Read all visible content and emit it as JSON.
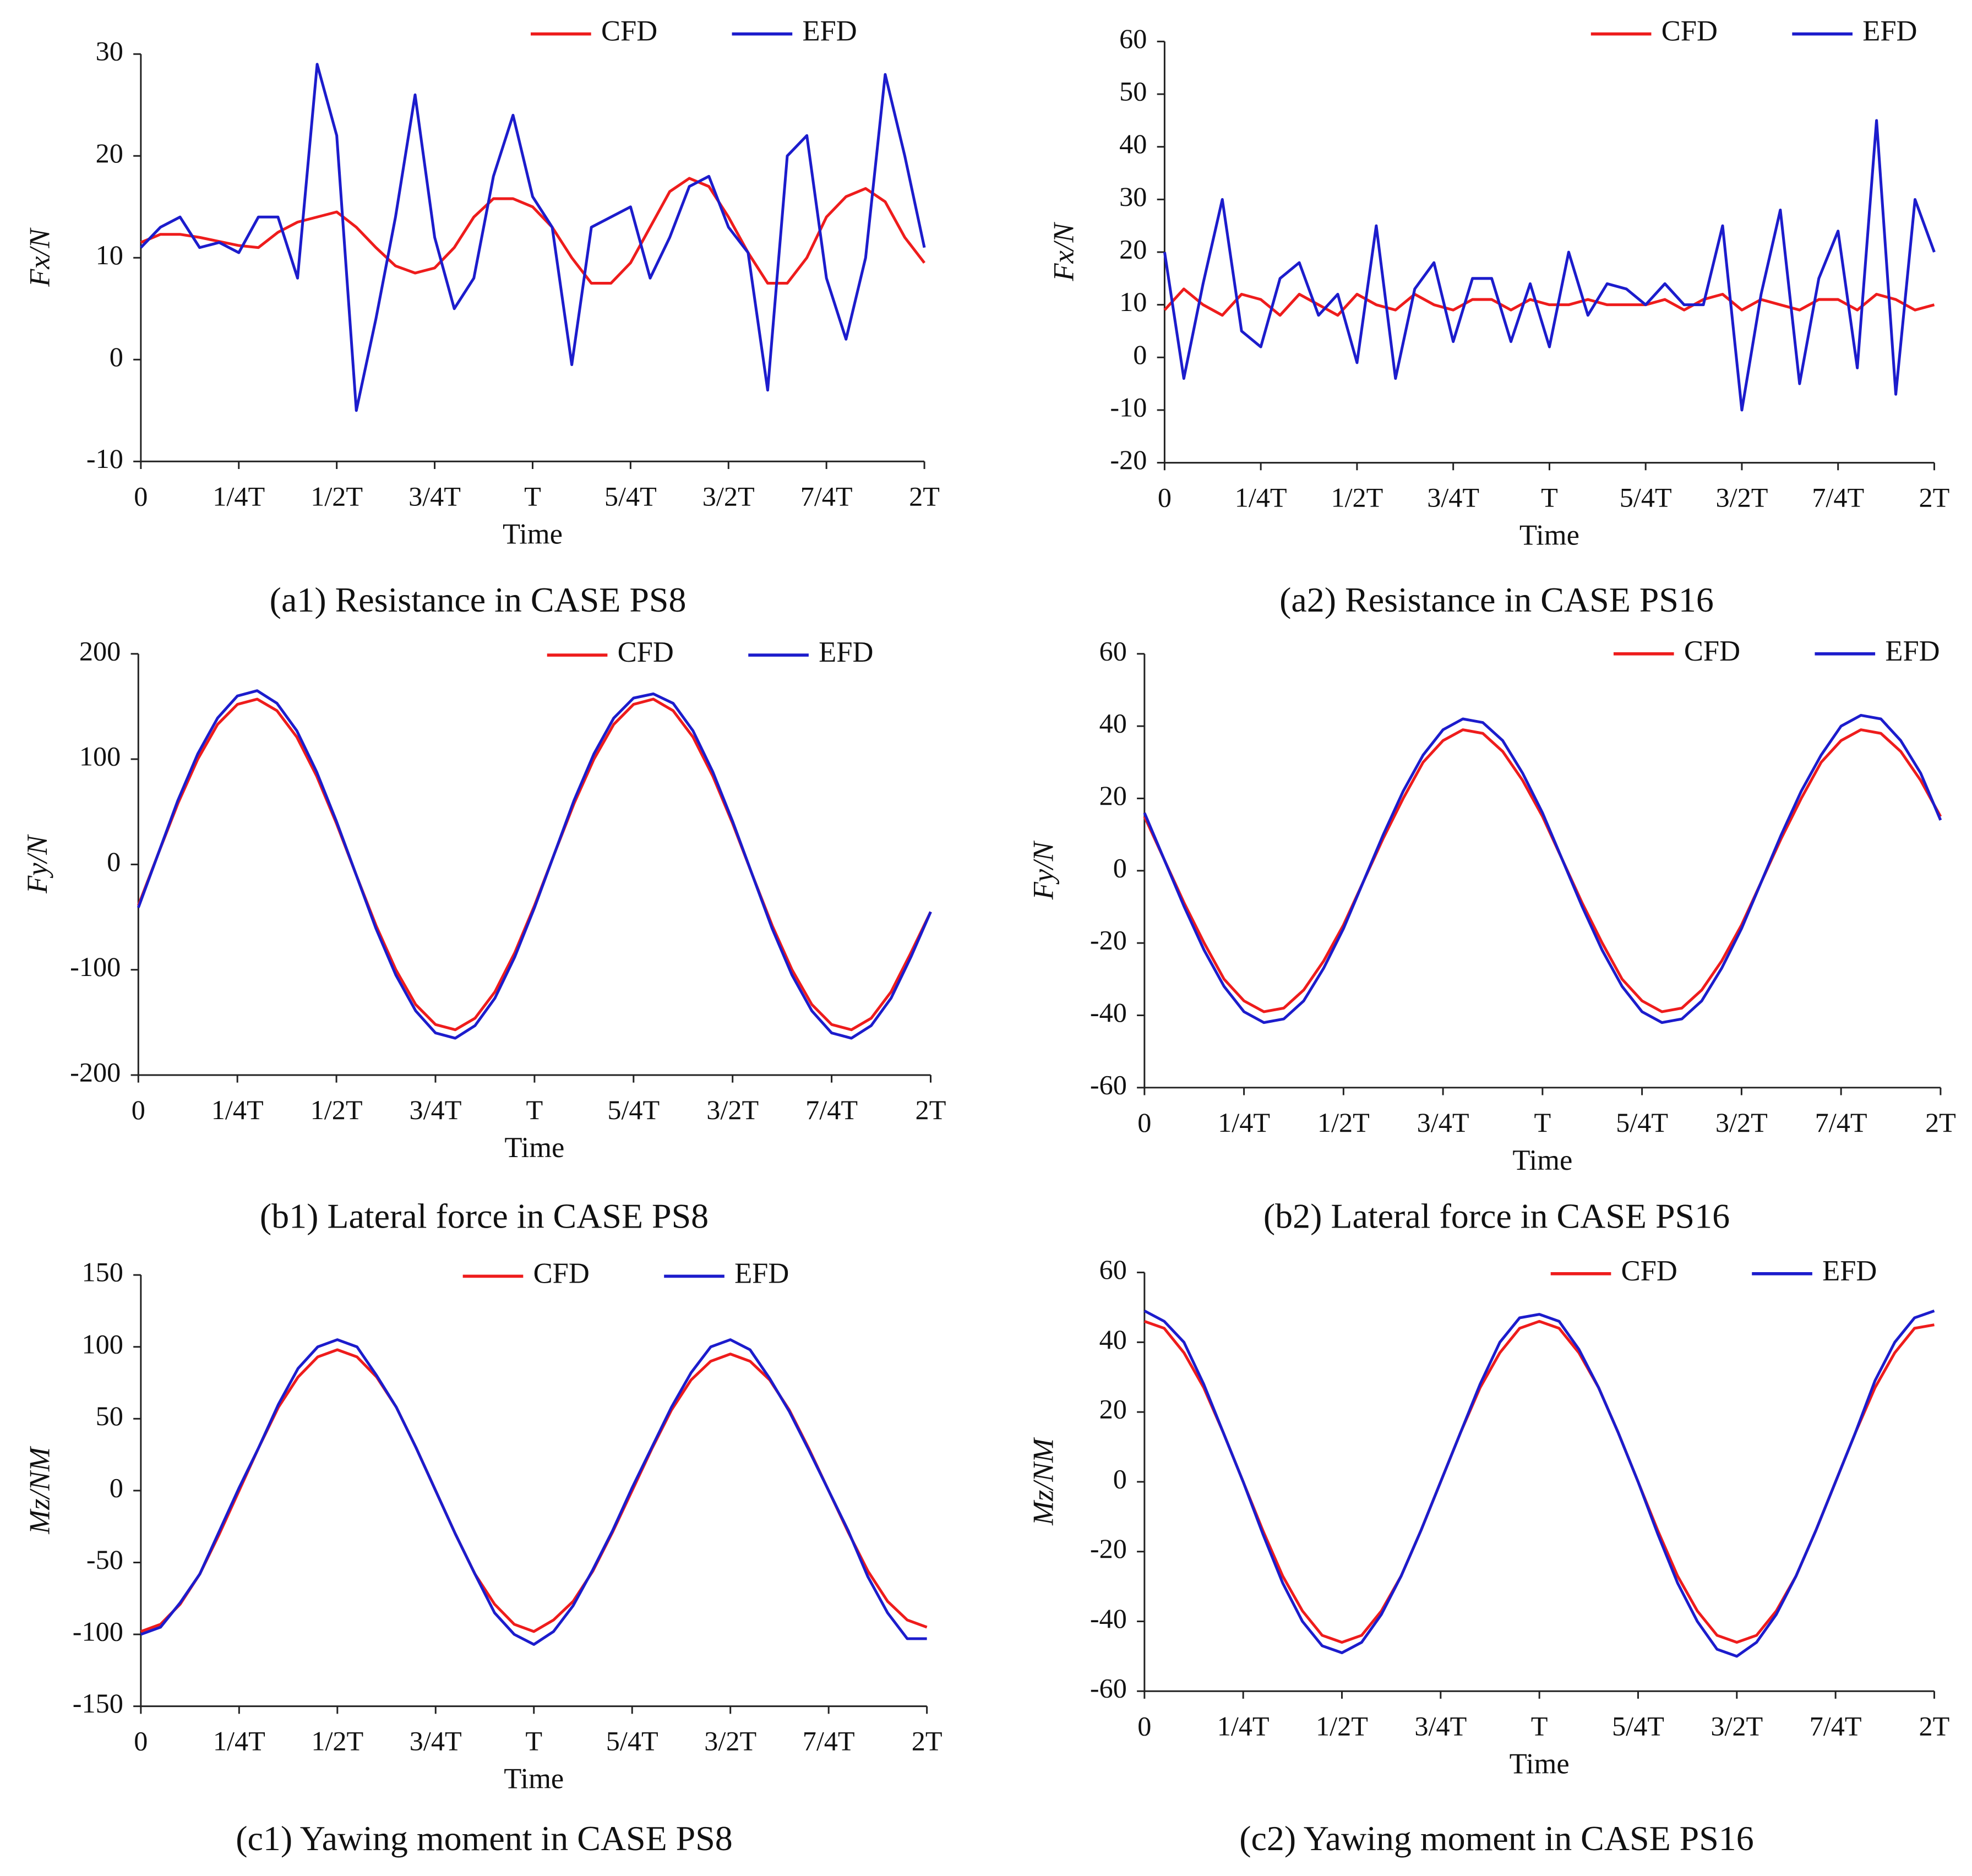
{
  "chart_data": [
    {
      "type": "line",
      "caption": "(a1) Resistance in CASE PS8",
      "xlabel": "Time",
      "ylabel": "Fx/N",
      "x": [
        0,
        0.05,
        0.1,
        0.15,
        0.2,
        0.25,
        0.3,
        0.35,
        0.4,
        0.45,
        0.5,
        0.55,
        0.6,
        0.65,
        0.7,
        0.75,
        0.8,
        0.85,
        0.9,
        0.95,
        1,
        1.05,
        1.1,
        1.15,
        1.2,
        1.25,
        1.3,
        1.35,
        1.4,
        1.45,
        1.5,
        1.55,
        1.6,
        1.65,
        1.7,
        1.75,
        1.8,
        1.85,
        1.9,
        1.95,
        2
      ],
      "xlim": [
        0,
        2
      ],
      "xticks": [
        0,
        {
          "value": 0.25,
          "label": "1/4T"
        },
        {
          "value": 0.5,
          "label": "1/2T"
        },
        {
          "value": 0.75,
          "label": "3/4T"
        },
        {
          "value": 1,
          "label": "T"
        },
        {
          "value": 1.25,
          "label": "5/4T"
        },
        {
          "value": 1.5,
          "label": "3/2T"
        },
        {
          "value": 1.75,
          "label": "7/4T"
        },
        {
          "value": 2,
          "label": "2T"
        }
      ],
      "ylim": [
        -10,
        30
      ],
      "yticks": [
        -10,
        0,
        10,
        20,
        30
      ],
      "series": [
        {
          "name": "CFD",
          "color": "#ee1c1c",
          "values": [
            11.5,
            12.3,
            12.3,
            12,
            11.6,
            11.2,
            11,
            12.5,
            13.5,
            14,
            14.5,
            13,
            11,
            9.2,
            8.5,
            9,
            11,
            14,
            15.8,
            15.8,
            15,
            13,
            10,
            7.5,
            7.5,
            9.5,
            13,
            16.5,
            17.8,
            17,
            14,
            10.5,
            7.5,
            7.5,
            10,
            14,
            16,
            16.8,
            15.5,
            12,
            9.5
          ]
        },
        {
          "name": "EFD",
          "color": "#1c1ccc",
          "values": [
            11,
            13,
            14,
            11,
            11.5,
            10.5,
            14,
            14,
            8,
            29,
            22,
            -5,
            4,
            14,
            26,
            12,
            5,
            8,
            18,
            24,
            16,
            13,
            -0.5,
            13,
            14,
            15,
            8,
            12,
            17,
            18,
            13,
            10.5,
            -3,
            20,
            22,
            8,
            2,
            10,
            28,
            20,
            11
          ]
        }
      ]
    },
    {
      "type": "line",
      "caption": "(a2) Resistance in CASE PS16",
      "xlabel": "Time",
      "ylabel": "Fx/N",
      "x": [
        0,
        0.05,
        0.1,
        0.15,
        0.2,
        0.25,
        0.3,
        0.35,
        0.4,
        0.45,
        0.5,
        0.55,
        0.6,
        0.65,
        0.7,
        0.75,
        0.8,
        0.85,
        0.9,
        0.95,
        1,
        1.05,
        1.1,
        1.15,
        1.2,
        1.25,
        1.3,
        1.35,
        1.4,
        1.45,
        1.5,
        1.55,
        1.6,
        1.65,
        1.7,
        1.75,
        1.8,
        1.85,
        1.9,
        1.95,
        2
      ],
      "xlim": [
        0,
        2
      ],
      "xticks": [
        0,
        {
          "value": 0.25,
          "label": "1/4T"
        },
        {
          "value": 0.5,
          "label": "1/2T"
        },
        {
          "value": 0.75,
          "label": "3/4T"
        },
        {
          "value": 1,
          "label": "T"
        },
        {
          "value": 1.25,
          "label": "5/4T"
        },
        {
          "value": 1.5,
          "label": "3/2T"
        },
        {
          "value": 1.75,
          "label": "7/4T"
        },
        {
          "value": 2,
          "label": "2T"
        }
      ],
      "ylim": [
        -20,
        60
      ],
      "yticks": [
        -20,
        -10,
        0,
        10,
        20,
        30,
        40,
        50,
        60
      ],
      "series": [
        {
          "name": "CFD",
          "color": "#ee1c1c",
          "values": [
            9,
            13,
            10,
            8,
            12,
            11,
            8,
            12,
            10,
            8,
            12,
            10,
            9,
            12,
            10,
            9,
            11,
            11,
            9,
            11,
            10,
            10,
            11,
            10,
            10,
            10,
            11,
            9,
            11,
            12,
            9,
            11,
            10,
            9,
            11,
            11,
            9,
            12,
            11,
            9,
            10
          ]
        },
        {
          "name": "EFD",
          "color": "#1c1ccc",
          "values": [
            20,
            -4,
            14,
            30,
            5,
            2,
            15,
            18,
            8,
            12,
            -1,
            25,
            -4,
            13,
            18,
            3,
            15,
            15,
            3,
            14,
            2,
            20,
            8,
            14,
            13,
            10,
            14,
            10,
            10,
            25,
            -10,
            12,
            28,
            -5,
            15,
            24,
            -2,
            45,
            -7,
            30,
            20
          ]
        }
      ]
    },
    {
      "type": "line",
      "caption": "(b1) Lateral force in CASE PS8",
      "xlabel": "Time",
      "ylabel": "Fy/N",
      "x": [
        0,
        0.05,
        0.1,
        0.15,
        0.2,
        0.25,
        0.3,
        0.35,
        0.4,
        0.45,
        0.5,
        0.55,
        0.6,
        0.65,
        0.7,
        0.75,
        0.8,
        0.85,
        0.9,
        0.95,
        1,
        1.05,
        1.1,
        1.15,
        1.2,
        1.25,
        1.3,
        1.35,
        1.4,
        1.45,
        1.5,
        1.55,
        1.6,
        1.65,
        1.7,
        1.75,
        1.8,
        1.85,
        1.9,
        1.95,
        2
      ],
      "xlim": [
        0,
        2
      ],
      "xticks": [
        0,
        {
          "value": 0.25,
          "label": "1/4T"
        },
        {
          "value": 0.5,
          "label": "1/2T"
        },
        {
          "value": 0.75,
          "label": "3/4T"
        },
        {
          "value": 1,
          "label": "T"
        },
        {
          "value": 1.25,
          "label": "5/4T"
        },
        {
          "value": 1.5,
          "label": "3/2T"
        },
        {
          "value": 1.75,
          "label": "7/4T"
        },
        {
          "value": 2,
          "label": "2T"
        }
      ],
      "ylim": [
        -200,
        200
      ],
      "yticks": [
        -200,
        -100,
        0,
        100,
        200
      ],
      "series": [
        {
          "name": "CFD",
          "color": "#ee1c1c",
          "values": [
            -39,
            10,
            58,
            100,
            133,
            152,
            157,
            146,
            121,
            84,
            39,
            -10,
            -58,
            -100,
            -133,
            -152,
            -157,
            -146,
            -121,
            -84,
            -39,
            10,
            58,
            100,
            133,
            152,
            157,
            146,
            121,
            84,
            39,
            -10,
            -58,
            -100,
            -133,
            -152,
            -157,
            -146,
            -121,
            -84,
            -45
          ]
        },
        {
          "name": "EFD",
          "color": "#1c1ccc",
          "values": [
            -41,
            10,
            61,
            105,
            139,
            160,
            165,
            153,
            127,
            88,
            41,
            -10,
            -61,
            -105,
            -139,
            -160,
            -165,
            -153,
            -127,
            -88,
            -41,
            10,
            61,
            105,
            139,
            158,
            162,
            153,
            127,
            88,
            41,
            -10,
            -61,
            -105,
            -139,
            -160,
            -165,
            -153,
            -127,
            -88,
            -45
          ]
        }
      ]
    },
    {
      "type": "line",
      "caption": "(b2) Lateral force in CASE PS16",
      "xlabel": "Time",
      "ylabel": "Fy/N",
      "x": [
        0,
        0.05,
        0.1,
        0.15,
        0.2,
        0.25,
        0.3,
        0.35,
        0.4,
        0.45,
        0.5,
        0.55,
        0.6,
        0.65,
        0.7,
        0.75,
        0.8,
        0.85,
        0.9,
        0.95,
        1,
        1.05,
        1.1,
        1.15,
        1.2,
        1.25,
        1.3,
        1.35,
        1.4,
        1.45,
        1.5,
        1.55,
        1.6,
        1.65,
        1.7,
        1.75,
        1.8,
        1.85,
        1.9,
        1.95,
        2
      ],
      "xlim": [
        0,
        2
      ],
      "xticks": [
        0,
        {
          "value": 0.25,
          "label": "1/4T"
        },
        {
          "value": 0.5,
          "label": "1/2T"
        },
        {
          "value": 0.75,
          "label": "3/4T"
        },
        {
          "value": 1,
          "label": "T"
        },
        {
          "value": 1.25,
          "label": "5/4T"
        },
        {
          "value": 1.5,
          "label": "3/2T"
        },
        {
          "value": 1.75,
          "label": "7/4T"
        },
        {
          "value": 2,
          "label": "2T"
        }
      ],
      "ylim": [
        -60,
        60
      ],
      "yticks": [
        -60,
        -40,
        -20,
        0,
        20,
        40,
        60
      ],
      "series": [
        {
          "name": "CFD",
          "color": "#ee1c1c",
          "values": [
            15,
            3,
            -9,
            -20,
            -30,
            -36,
            -39,
            -38,
            -33,
            -25,
            -15,
            -3,
            9,
            20,
            30,
            36,
            39,
            38,
            33,
            25,
            15,
            3,
            -9,
            -20,
            -30,
            -36,
            -39,
            -38,
            -33,
            -25,
            -15,
            -3,
            9,
            20,
            30,
            36,
            39,
            38,
            33,
            25,
            15
          ]
        },
        {
          "name": "EFD",
          "color": "#1c1ccc",
          "values": [
            16,
            3,
            -10,
            -22,
            -32,
            -39,
            -42,
            -41,
            -36,
            -27,
            -16,
            -3,
            10,
            22,
            32,
            39,
            42,
            41,
            36,
            27,
            16,
            3,
            -10,
            -22,
            -32,
            -39,
            -42,
            -41,
            -36,
            -27,
            -16,
            -3,
            10,
            22,
            32,
            40,
            43,
            42,
            36,
            27,
            14
          ]
        }
      ]
    },
    {
      "type": "line",
      "caption": "(c1) Yawing moment in CASE PS8",
      "xlabel": "Time",
      "ylabel": "Mz/NM",
      "x": [
        0,
        0.05,
        0.1,
        0.15,
        0.2,
        0.25,
        0.3,
        0.35,
        0.4,
        0.45,
        0.5,
        0.55,
        0.6,
        0.65,
        0.7,
        0.75,
        0.8,
        0.85,
        0.9,
        0.95,
        1,
        1.05,
        1.1,
        1.15,
        1.2,
        1.25,
        1.3,
        1.35,
        1.4,
        1.45,
        1.5,
        1.55,
        1.6,
        1.65,
        1.7,
        1.75,
        1.8,
        1.85,
        1.9,
        1.95,
        2
      ],
      "xlim": [
        0,
        2
      ],
      "xticks": [
        0,
        {
          "value": 0.25,
          "label": "1/4T"
        },
        {
          "value": 0.5,
          "label": "1/2T"
        },
        {
          "value": 0.75,
          "label": "3/4T"
        },
        {
          "value": 1,
          "label": "T"
        },
        {
          "value": 1.25,
          "label": "5/4T"
        },
        {
          "value": 1.5,
          "label": "3/2T"
        },
        {
          "value": 1.75,
          "label": "7/4T"
        },
        {
          "value": 2,
          "label": "2T"
        }
      ],
      "ylim": [
        -150,
        150
      ],
      "yticks": [
        -150,
        -100,
        -50,
        0,
        50,
        100,
        150
      ],
      "series": [
        {
          "name": "CFD",
          "color": "#ee1c1c",
          "values": [
            -98,
            -93,
            -79,
            -58,
            -30,
            0,
            30,
            58,
            79,
            93,
            98,
            93,
            79,
            58,
            30,
            0,
            -30,
            -58,
            -79,
            -93,
            -98,
            -90,
            -77,
            -56,
            -29,
            0,
            29,
            56,
            77,
            90,
            95,
            90,
            77,
            56,
            29,
            0,
            -29,
            -56,
            -77,
            -90,
            -95
          ]
        },
        {
          "name": "EFD",
          "color": "#1c1ccc",
          "values": [
            -100,
            -95,
            -78,
            -58,
            -28,
            2,
            30,
            60,
            85,
            100,
            105,
            100,
            80,
            58,
            30,
            0,
            -30,
            -58,
            -85,
            -100,
            -107,
            -98,
            -80,
            -55,
            -28,
            2,
            30,
            58,
            82,
            100,
            105,
            98,
            78,
            55,
            28,
            0,
            -28,
            -60,
            -85,
            -103,
            -103
          ]
        }
      ]
    },
    {
      "type": "line",
      "caption": "(c2) Yawing moment in CASE PS16",
      "xlabel": "Time",
      "ylabel": "Mz/NM",
      "x": [
        0,
        0.05,
        0.1,
        0.15,
        0.2,
        0.25,
        0.3,
        0.35,
        0.4,
        0.45,
        0.5,
        0.55,
        0.6,
        0.65,
        0.7,
        0.75,
        0.8,
        0.85,
        0.9,
        0.95,
        1,
        1.05,
        1.1,
        1.15,
        1.2,
        1.25,
        1.3,
        1.35,
        1.4,
        1.45,
        1.5,
        1.55,
        1.6,
        1.65,
        1.7,
        1.75,
        1.8,
        1.85,
        1.9,
        1.95,
        2
      ],
      "xlim": [
        0,
        2
      ],
      "xticks": [
        0,
        {
          "value": 0.25,
          "label": "1/4T"
        },
        {
          "value": 0.5,
          "label": "1/2T"
        },
        {
          "value": 0.75,
          "label": "3/4T"
        },
        {
          "value": 1,
          "label": "T"
        },
        {
          "value": 1.25,
          "label": "5/4T"
        },
        {
          "value": 1.5,
          "label": "3/2T"
        },
        {
          "value": 1.75,
          "label": "7/4T"
        },
        {
          "value": 2,
          "label": "2T"
        }
      ],
      "ylim": [
        -60,
        60
      ],
      "yticks": [
        -60,
        -40,
        -20,
        0,
        20,
        40,
        60
      ],
      "series": [
        {
          "name": "CFD",
          "color": "#ee1c1c",
          "values": [
            46,
            44,
            37,
            27,
            14,
            0,
            -14,
            -27,
            -37,
            -44,
            -46,
            -44,
            -37,
            -27,
            -14,
            0,
            14,
            27,
            37,
            44,
            46,
            44,
            37,
            27,
            14,
            0,
            -14,
            -27,
            -37,
            -44,
            -46,
            -44,
            -37,
            -27,
            -14,
            0,
            14,
            27,
            37,
            44,
            45
          ]
        },
        {
          "name": "EFD",
          "color": "#1c1ccc",
          "values": [
            49,
            46,
            40,
            28,
            14,
            0,
            -15,
            -29,
            -40,
            -47,
            -49,
            -46,
            -38,
            -27,
            -14,
            0,
            14,
            28,
            40,
            47,
            48,
            46,
            38,
            27,
            14,
            0,
            -15,
            -29,
            -40,
            -48,
            -50,
            -46,
            -38,
            -27,
            -14,
            0,
            14,
            29,
            40,
            47,
            49
          ]
        }
      ]
    }
  ]
}
